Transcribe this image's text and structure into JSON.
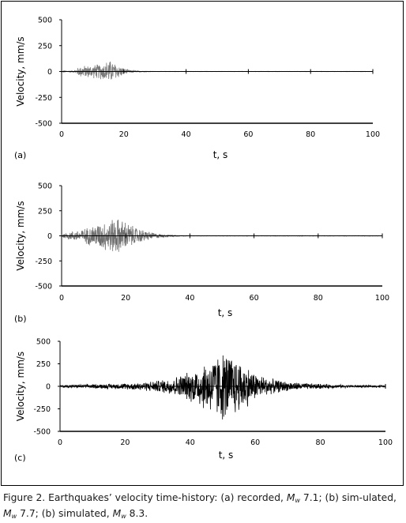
{
  "caption": {
    "prefix": "Figure 2. Earthquakes’ velocity time-history: (a) recorded, ",
    "m1": "M",
    "m1_sub": "w",
    "mid1": " 7.1; (b) sim-ulated, ",
    "m2": "M",
    "m2_sub": "w",
    "mid2": " 7.7; (b) simulated, ",
    "m3": "M",
    "m3_sub": "w",
    "suffix": " 8.3."
  },
  "chart_data": [
    {
      "type": "line",
      "panel_label": "(a)",
      "xlabel": "t,  s",
      "ylabel": "Velocity, mm/s",
      "xlim": [
        0,
        100
      ],
      "ylim": [
        -500,
        500
      ],
      "xticks": [
        "0",
        "20",
        "40",
        "60",
        "80",
        "100"
      ],
      "yticks": [
        "500",
        "250",
        "0",
        "-250",
        "-500"
      ],
      "color": "#7a7a7a",
      "envelope": {
        "t": [
          0,
          4,
          5,
          6,
          8,
          10,
          12,
          14,
          15,
          16,
          18,
          20,
          22,
          25,
          30,
          100
        ],
        "amp": [
          5,
          10,
          35,
          60,
          65,
          70,
          80,
          95,
          130,
          110,
          75,
          35,
          15,
          6,
          2,
          2
        ]
      }
    },
    {
      "type": "line",
      "panel_label": "(b)",
      "xlabel": "t,  s",
      "ylabel": "Velocity, mm/s",
      "xlim": [
        0,
        100
      ],
      "ylim": [
        -500,
        500
      ],
      "xticks": [
        "0",
        "20",
        "40",
        "60",
        "80",
        "100"
      ],
      "yticks": [
        "500",
        "250",
        "0",
        "-250",
        "-500"
      ],
      "color": "#6f6f6f",
      "envelope": {
        "t": [
          0,
          2,
          5,
          8,
          10,
          12,
          15,
          17,
          18,
          20,
          22,
          25,
          28,
          30,
          33,
          37,
          40,
          100
        ],
        "amp": [
          20,
          40,
          60,
          90,
          120,
          140,
          180,
          200,
          185,
          160,
          110,
          70,
          40,
          25,
          12,
          5,
          3,
          3
        ]
      }
    },
    {
      "type": "line",
      "panel_label": "(c)",
      "xlabel": "t,  s",
      "ylabel": "Velocity, mm/s",
      "xlim": [
        0,
        100
      ],
      "ylim": [
        -500,
        500
      ],
      "xticks": [
        "0",
        "20",
        "40",
        "60",
        "80",
        "100"
      ],
      "yticks": [
        "500",
        "250",
        "0",
        "-250",
        "-500"
      ],
      "color": "#000000",
      "envelope": {
        "t": [
          0,
          10,
          20,
          25,
          30,
          35,
          40,
          45,
          48,
          50,
          52,
          55,
          58,
          60,
          65,
          70,
          75,
          80,
          90,
          100
        ],
        "amp": [
          15,
          25,
          35,
          50,
          70,
          110,
          180,
          300,
          380,
          420,
          400,
          320,
          230,
          160,
          90,
          55,
          40,
          28,
          15,
          12
        ]
      }
    }
  ]
}
